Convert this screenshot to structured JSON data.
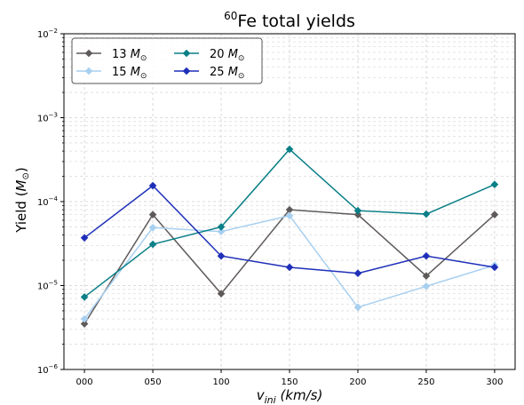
{
  "chart_data": {
    "type": "line",
    "title_sup": "60",
    "title_main": "Fe total yields",
    "xlabel_main": "v",
    "xlabel_sub": "ini",
    "xlabel_units": " (km/s)",
    "ylabel_main": "Yield (",
    "ylabel_sym": "M",
    "ylabel_sub": "⊙",
    "ylabel_close": ")",
    "x_tick_labels": [
      "000",
      "050",
      "100",
      "150",
      "200",
      "250",
      "300"
    ],
    "x": [
      0,
      50,
      100,
      150,
      200,
      250,
      300
    ],
    "xlim": [
      -15,
      315
    ],
    "y_scale": "log",
    "ylim": [
      1e-06,
      0.01
    ],
    "y_tick_labels": [
      {
        "base": "10",
        "exp": "−6",
        "value": 1e-06
      },
      {
        "base": "10",
        "exp": "−5",
        "value": 1e-05
      },
      {
        "base": "10",
        "exp": "−4",
        "value": 0.0001
      },
      {
        "base": "10",
        "exp": "−3",
        "value": 0.001
      },
      {
        "base": "10",
        "exp": "−2",
        "value": 0.01
      }
    ],
    "grid": true,
    "legend_position": "top-left",
    "series": [
      {
        "name_num": "13",
        "name_sym": "M",
        "name_sub": "⊙",
        "color": "#5f5a5a",
        "values": [
          3.5e-06,
          7e-05,
          8e-06,
          8e-05,
          7e-05,
          1.3e-05,
          7e-05
        ]
      },
      {
        "name_num": "15",
        "name_sym": "M",
        "name_sub": "⊙",
        "color": "#a7cff0",
        "values": [
          4e-06,
          4.9e-05,
          4.4e-05,
          6.8e-05,
          5.5e-06,
          9.8e-06,
          1.75e-05
        ]
      },
      {
        "name_num": "20",
        "name_sym": "M",
        "name_sub": "⊙",
        "color": "#0a7f87",
        "values": [
          7.3e-06,
          3.1e-05,
          5e-05,
          0.00042,
          7.8e-05,
          7.1e-05,
          0.00016
        ]
      },
      {
        "name_num": "25",
        "name_sym": "M",
        "name_sub": "⊙",
        "color": "#1e2fb8",
        "values": [
          3.7e-05,
          0.000155,
          2.25e-05,
          1.65e-05,
          1.4e-05,
          2.25e-05,
          1.65e-05
        ]
      }
    ]
  }
}
